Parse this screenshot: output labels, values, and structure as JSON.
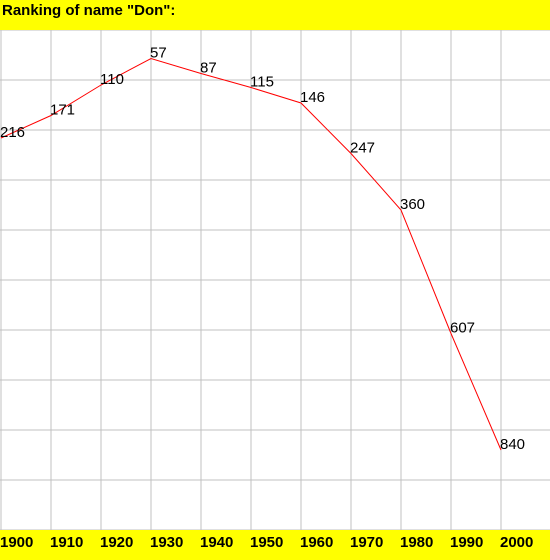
{
  "chart_data": {
    "type": "line",
    "title": "Ranking of name \"Don\":",
    "xlabel": "",
    "ylabel": "",
    "x": [
      1900,
      1910,
      1920,
      1930,
      1940,
      1950,
      1960,
      1970,
      1980,
      1990,
      2000
    ],
    "series": [
      {
        "values": [
          216,
          171,
          110,
          57,
          87,
          115,
          146,
          247,
          360,
          607,
          840
        ]
      }
    ],
    "ylim": [
      0,
      1000
    ],
    "y_inverted": true,
    "grid": true,
    "colors": {
      "line": "#ff0000",
      "band": "#ffff00",
      "grid": "#c0c0c0"
    }
  }
}
